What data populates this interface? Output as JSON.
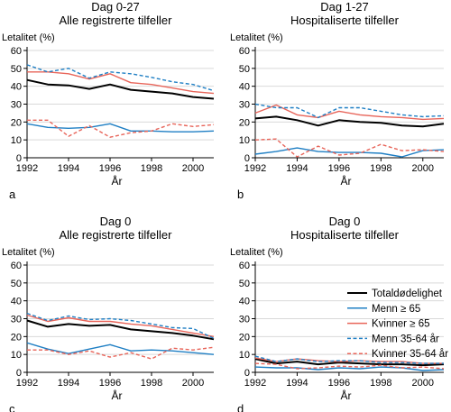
{
  "colors": {
    "total": "#000000",
    "men_65": "#1f7fc4",
    "women_65": "#e8655a",
    "men_35_64": "#1f7fc4",
    "women_35_64": "#e8655a",
    "grid": "#d9d9d9"
  },
  "legend": {
    "placement": "right of panel d",
    "entries": [
      {
        "key": "total",
        "label": "Totaldødelighet",
        "style": "solid"
      },
      {
        "key": "men_65",
        "label": "Menn ≥ 65",
        "style": "solid"
      },
      {
        "key": "women_65",
        "label": "Kvinner ≥ 65",
        "style": "solid"
      },
      {
        "key": "men_35_64",
        "label": "Menn 35-64 år",
        "style": "dashed"
      },
      {
        "key": "women_35_64",
        "label": "Kvinner 35-64 år",
        "style": "dashed"
      }
    ]
  },
  "chart_data": [
    {
      "type": "line",
      "panel_letter": "a",
      "title": "Dag 0-27",
      "subtitle": "Alle registrerte tilfeller",
      "ylabel": "Letalitet (%)",
      "xlabel": "År",
      "ylim": [
        0,
        60
      ],
      "yticks": [
        0,
        10,
        20,
        30,
        40,
        50,
        60
      ],
      "xlim": [
        1992,
        2001
      ],
      "xticks": [
        1992,
        1994,
        1996,
        1998,
        2000
      ],
      "grid": true,
      "x": [
        1992,
        1993,
        1994,
        1995,
        1996,
        1997,
        1998,
        1999,
        2000,
        2001
      ],
      "series": [
        {
          "key": "total",
          "values": [
            43.5,
            41,
            40.5,
            38.5,
            41,
            38,
            37,
            36,
            34,
            33
          ]
        },
        {
          "key": "men_65",
          "values": [
            19,
            17,
            16.5,
            17,
            19,
            15,
            15,
            14.5,
            14.5,
            15
          ]
        },
        {
          "key": "women_65",
          "values": [
            48,
            48,
            47,
            44,
            47,
            42,
            41,
            39,
            37,
            36
          ]
        },
        {
          "key": "men_35_64",
          "values": [
            52,
            48,
            50,
            44.5,
            48,
            47,
            45,
            42.5,
            41,
            37.5
          ]
        },
        {
          "key": "women_35_64",
          "values": [
            21,
            21,
            12,
            18,
            11.5,
            14,
            15,
            19,
            17.5,
            18.5
          ]
        }
      ]
    },
    {
      "type": "line",
      "panel_letter": "b",
      "title": "Dag 1-27",
      "subtitle": "Hospitaliserte tilfeller",
      "ylabel": "Letalitet (%)",
      "xlabel": "År",
      "ylim": [
        0,
        60
      ],
      "yticks": [
        0,
        10,
        20,
        30,
        40,
        50,
        60
      ],
      "xlim": [
        1992,
        2001
      ],
      "xticks": [
        1992,
        1994,
        1996,
        1998,
        2000
      ],
      "grid": true,
      "x": [
        1992,
        1993,
        1994,
        1995,
        1996,
        1997,
        1998,
        1999,
        2000,
        2001
      ],
      "series": [
        {
          "key": "total",
          "values": [
            22,
            23,
            21,
            18,
            21,
            20,
            19.5,
            18,
            17.5,
            19
          ]
        },
        {
          "key": "men_65",
          "values": [
            2,
            3.5,
            5.5,
            3.5,
            3,
            3,
            2.5,
            0.5,
            4,
            4.5
          ]
        },
        {
          "key": "women_65",
          "values": [
            25,
            29.5,
            24,
            22.5,
            26,
            24,
            23,
            22.5,
            21.5,
            22
          ]
        },
        {
          "key": "men_35_64",
          "values": [
            30,
            28,
            28,
            22.5,
            28,
            28,
            26,
            24,
            23,
            23.5
          ]
        },
        {
          "key": "women_35_64",
          "values": [
            10,
            10.5,
            0.5,
            6.5,
            1.5,
            2.5,
            7.5,
            4,
            4.5,
            3.5
          ]
        }
      ]
    },
    {
      "type": "line",
      "panel_letter": "c",
      "title": "Dag 0",
      "subtitle": "Alle registrerte tilfeller",
      "ylabel": "Letalitet (%)",
      "xlabel": "År",
      "ylim": [
        0,
        60
      ],
      "yticks": [
        0,
        10,
        20,
        30,
        40,
        50,
        60
      ],
      "xlim": [
        1992,
        2001
      ],
      "xticks": [
        1992,
        1994,
        1996,
        1998,
        2000
      ],
      "grid": true,
      "x": [
        1992,
        1993,
        1994,
        1995,
        1996,
        1997,
        1998,
        1999,
        2000,
        2001
      ],
      "series": [
        {
          "key": "total",
          "values": [
            29,
            25.5,
            27,
            26,
            26.5,
            24,
            23,
            22,
            20.5,
            18.5
          ]
        },
        {
          "key": "men_65",
          "values": [
            16.5,
            13,
            10.5,
            13,
            15.5,
            12,
            12.5,
            12,
            11,
            10
          ]
        },
        {
          "key": "women_65",
          "values": [
            32,
            28.5,
            30.5,
            28.5,
            28.5,
            27,
            26,
            24,
            22,
            20
          ]
        },
        {
          "key": "men_35_64",
          "values": [
            33,
            29,
            31.5,
            29.5,
            30,
            29,
            27,
            25,
            24.5,
            19
          ]
        },
        {
          "key": "women_35_64",
          "values": [
            12.5,
            12.5,
            10,
            12,
            8.5,
            11,
            7.5,
            13.5,
            12.5,
            14
          ]
        }
      ]
    },
    {
      "type": "line",
      "panel_letter": "d",
      "title": "Dag 0",
      "subtitle": "Hospitaliserte tilfeller",
      "ylabel": "Letalitet (%)",
      "xlabel": "År",
      "ylim": [
        0,
        60
      ],
      "yticks": [
        0,
        10,
        20,
        30,
        40,
        50,
        60
      ],
      "xlim": [
        1992,
        2001
      ],
      "xticks": [
        1992,
        1994,
        1996,
        1998,
        2000
      ],
      "grid": true,
      "x": [
        1992,
        1993,
        1994,
        1995,
        1996,
        1997,
        1998,
        1999,
        2000,
        2001
      ],
      "series": [
        {
          "key": "total",
          "values": [
            7.5,
            5,
            6,
            4.5,
            5.5,
            5,
            4.5,
            4.5,
            4,
            4.5
          ]
        },
        {
          "key": "men_65",
          "values": [
            3,
            2.5,
            2.5,
            1.5,
            2.5,
            2,
            3,
            2.5,
            1,
            1.5
          ]
        },
        {
          "key": "women_65",
          "values": [
            8,
            6,
            7.5,
            6.5,
            6,
            6.5,
            6,
            6,
            5,
            5
          ]
        },
        {
          "key": "men_35_64",
          "values": [
            9,
            6,
            7.5,
            6,
            6.5,
            6.5,
            5.5,
            5.5,
            5,
            5
          ]
        },
        {
          "key": "women_35_64",
          "values": [
            5,
            4.5,
            2,
            2.5,
            3.5,
            3,
            4,
            2.5,
            3,
            2
          ]
        }
      ]
    }
  ]
}
